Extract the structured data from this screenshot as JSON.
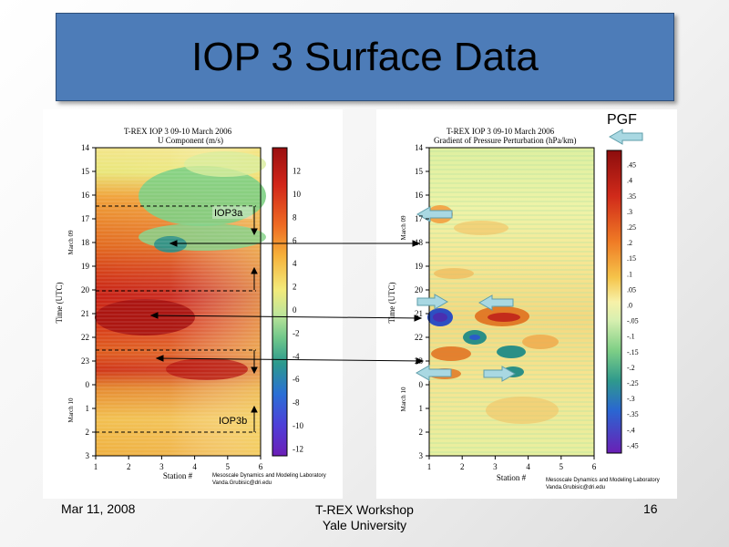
{
  "slide": {
    "title": "IOP 3 Surface Data",
    "footer_date": "Mar 11, 2008",
    "footer_center_line1": "T-REX Workshop",
    "footer_center_line2": "Yale University",
    "page_number": "16"
  },
  "colors": {
    "title_bg": "#4d7cb8",
    "arrow_fill": "#a9d8e2",
    "arrow_stroke": "#5f9eaa"
  },
  "left_plot": {
    "title_line1": "T-REX  IOP 3  09-10 March 2006",
    "title_line2": "U Component (m/s)",
    "ylabel": "Time (UTC)",
    "xlabel": "Station #",
    "day1_label": "March 09",
    "day2_label": "March 10",
    "annotation_a": "IOP3a",
    "annotation_b": "IOP3b",
    "credit_line1": "Mesoscale Dynamics and Modeling Laboratory",
    "credit_line2": "Vanda.Grubisic@dri.edu",
    "time_ticks": [
      "14",
      "15",
      "16",
      "17",
      "18",
      "19",
      "20",
      "21",
      "22",
      "23",
      "0",
      "1",
      "2",
      "3"
    ],
    "station_ticks": [
      "1",
      "2",
      "3",
      "4",
      "5",
      "6"
    ],
    "colorbar_ticks": [
      "12",
      "10",
      "8",
      "6",
      "4",
      "2",
      "0",
      "-2",
      "-4",
      "-6",
      "-8",
      "-10",
      "-12"
    ]
  },
  "right_plot": {
    "title_line1": "T-REX  IOP 3  09-10 March 2006",
    "title_line2": "Gradient of Pressure Perturbation (hPa/km)",
    "ylabel": "Time (UTC)",
    "xlabel": "Station #",
    "day1_label": "March 09",
    "day2_label": "March 10",
    "legend_label": "PGF",
    "credit_line1": "Mesoscale Dynamics and Modeling Laboratory",
    "credit_line2": "Vanda.Grubisic@dri.edu",
    "time_ticks": [
      "14",
      "15",
      "16",
      "17",
      "18",
      "19",
      "20",
      "21",
      "22",
      "23",
      "0",
      "1",
      "2",
      "3"
    ],
    "station_ticks": [
      "1",
      "2",
      "3",
      "4",
      "5",
      "6"
    ],
    "colorbar_ticks": [
      ".45",
      ".4",
      ".35",
      ".3",
      ".25",
      ".2",
      ".15",
      ".1",
      ".05",
      ".0",
      "-.05",
      "-.1",
      "-.15",
      "-.2",
      "-.25",
      "-.3",
      "-.35",
      "-.4",
      "-.45"
    ]
  }
}
